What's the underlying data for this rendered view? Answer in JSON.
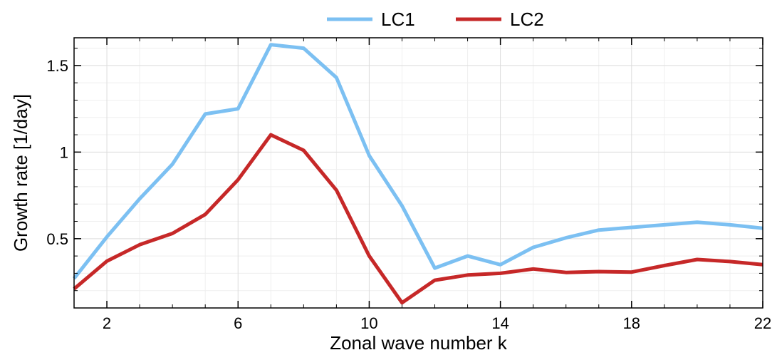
{
  "chart_data": {
    "type": "line",
    "xlabel": "Zonal wave number k",
    "ylabel": "Growth rate [1/day]",
    "xlim": [
      1,
      22
    ],
    "ylim": [
      0.1,
      1.66
    ],
    "xticks": [
      2,
      6,
      10,
      14,
      18,
      22
    ],
    "yticks": [
      0.5,
      1,
      1.5
    ],
    "ytick_labels": [
      "0.5",
      "1",
      "1.5"
    ],
    "grid": true,
    "legend_position": "top-center",
    "series": [
      {
        "name": "LC1",
        "color": "#7cc0f2",
        "x": [
          1,
          2,
          3,
          4,
          5,
          6,
          7,
          8,
          9,
          10,
          11,
          12,
          13,
          14,
          15,
          16,
          17,
          18,
          19,
          20,
          21,
          22
        ],
        "y": [
          0.27,
          0.51,
          0.73,
          0.93,
          1.22,
          1.25,
          1.62,
          1.6,
          1.43,
          0.98,
          0.69,
          0.33,
          0.4,
          0.35,
          0.45,
          0.505,
          0.55,
          0.565,
          0.58,
          0.595,
          0.58,
          0.56
        ]
      },
      {
        "name": "LC2",
        "color": "#c62828",
        "x": [
          1,
          2,
          3,
          4,
          5,
          6,
          7,
          8,
          9,
          10,
          11,
          12,
          13,
          14,
          15,
          16,
          17,
          18,
          19,
          20,
          21,
          22
        ],
        "y": [
          0.21,
          0.37,
          0.465,
          0.53,
          0.64,
          0.84,
          1.1,
          1.01,
          0.78,
          0.4,
          0.13,
          0.26,
          0.29,
          0.3,
          0.325,
          0.305,
          0.31,
          0.307,
          0.345,
          0.38,
          0.368,
          0.35
        ]
      }
    ]
  }
}
